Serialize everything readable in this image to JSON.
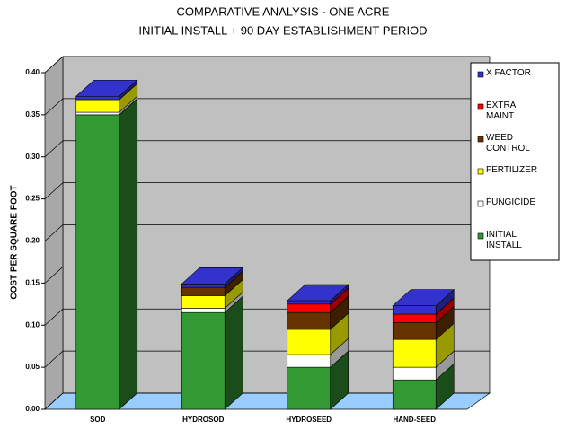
{
  "chart_data": {
    "type": "bar3d-stacked",
    "title": "COMPARATIVE ANALYSIS - ONE ACRE",
    "subtitle": "INITIAL INSTALL + 90 DAY ESTABLISHMENT PERIOD",
    "y_label": "COST PER SQUARE FOOT",
    "categories": [
      "SOD",
      "HYDROSOD",
      "HYDROSEED",
      "HAND-SEED"
    ],
    "series": [
      {
        "name": "INITIAL INSTALL",
        "color": "#339933",
        "values": [
          0.35,
          0.115,
          0.05,
          0.035
        ]
      },
      {
        "name": "FUNGICIDE",
        "color": "#ffffff",
        "values": [
          0.003,
          0.005,
          0.015,
          0.015
        ]
      },
      {
        "name": "FERTILIZER",
        "color": "#ffff00",
        "values": [
          0.015,
          0.015,
          0.03,
          0.033
        ]
      },
      {
        "name": "WEED CONTROL",
        "color": "#663300",
        "values": [
          0,
          0.01,
          0.02,
          0.02
        ]
      },
      {
        "name": "EXTRA MAINT",
        "color": "#ff0000",
        "values": [
          0,
          0,
          0.01,
          0.01
        ]
      },
      {
        "name": "X FACTOR",
        "color": "#3333cc",
        "values": [
          0.004,
          0.004,
          0.004,
          0.01
        ]
      }
    ],
    "ylim": [
      0,
      0.4
    ],
    "yticks": [
      {
        "value": 0,
        "label": "0.00"
      },
      {
        "value": 0.05,
        "label": "0.05"
      },
      {
        "value": 0.1,
        "label": "0.10"
      },
      {
        "value": 0.15,
        "label": "0.15"
      },
      {
        "value": 0.2,
        "label": "0.20"
      },
      {
        "value": 0.25,
        "label": "0.25"
      },
      {
        "value": 0.3,
        "label": "0.30"
      },
      {
        "value": 0.35,
        "label": "0.35"
      },
      {
        "value": 0.4,
        "label": "0.40"
      }
    ],
    "grid": true
  }
}
